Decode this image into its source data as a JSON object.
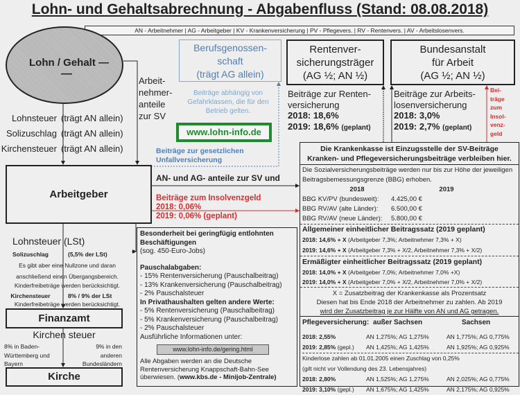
{
  "title": "Lohn- und Gehaltsabrechnung  -  Abgabenfluss (Stand: 08.08.2018)",
  "legend": "AN - Arbeitnehmer | AG - Arbeitgeber | KV - Krankenversicherung | PV - Pflegevers. | RV - Rentenvers. | AV - Arbeitslosenvers.",
  "ellipse": {
    "label": "Lohn / Gehalt —",
    "dash": "—"
  },
  "an_anteile": [
    "Arbeit-",
    "nehmer-",
    "anteile",
    "zur SV"
  ],
  "taxes": [
    {
      "name": "Lohnsteuer",
      "note": "(trägt AN allein)"
    },
    {
      "name": "Solizuschlag",
      "note": "(trägt AN allein)"
    },
    {
      "name": "Kirchensteuer",
      "note": "(trägt AN allein)"
    }
  ],
  "bg": {
    "title": [
      "Berufsgenossen-",
      "schaft",
      "(trägt AG allein)"
    ],
    "note": "Beiträge abhängig von Gefahrklassen, die für den Betrieb gelten.",
    "website": "www.lohn-info.de",
    "label": "Beiträge zur gesetzlichen Unfallversicherung"
  },
  "rv": {
    "title": [
      "Rentenver-",
      "sicherungsträger",
      "(AG ½; AN ½)"
    ],
    "text": [
      "Beiträge zur Renten-",
      "versicherung"
    ],
    "y2018": "2018: 18,6%",
    "y2019": "2019: 18,6%",
    "planned": "(geplant)"
  },
  "ba": {
    "title": [
      "Bundesanstalt",
      "für Arbeit",
      "(AG ½; AN ½)"
    ],
    "text": [
      "Beiträge zur Arbeits-",
      "losenversicherung"
    ],
    "y2018": "2018: 3,0%",
    "y2019": "2019: 2,7%",
    "planned": "(geplant)",
    "insolvenz": [
      "Bei-",
      "träge",
      "zum",
      "Insol-",
      "venz-",
      "geld"
    ]
  },
  "arbeitgeber": "Arbeitgeber",
  "flow": {
    "sv": "AN- und AG- anteile  zur SV und",
    "insolvenz": [
      "Beiträge zum Insolvenzgeld",
      "2018: 0,06%",
      "2019: 0,06% (geplant)"
    ]
  },
  "kk": {
    "head1": "Die Krankenkasse ist Einzugsstelle der SV-Beiträge",
    "head2": "Kranken- und Pflegeversicherungsbeiträge verbleiben hier.",
    "bbg_intro": "Die Sozialversicherungsbeiträge werden nur bis zur Höhe der jeweiligen Beitragsbemessungsgrenze (BBG) erhoben.",
    "years": [
      "2018",
      "2019"
    ],
    "bbg": [
      {
        "label": "BBG KV/PV (bundesweit):",
        "v2018": "4.425,00 €"
      },
      {
        "label": "BBG RV/AV (alte Länder):",
        "v2018": "6.500,00 €"
      },
      {
        "label": "BBG RV/AV (neue Länder):",
        "v2018": "5.800,00 €"
      }
    ],
    "allg_title": "Allgemeiner einheitlicher Beitragssatz (2019 geplant)",
    "allg": [
      {
        "y": "2018: 14,6% + X",
        "d": "(Arbeitgeber 7,3%; Arbeitnehmer 7,3% + X)"
      },
      {
        "y": "2019: 14,6% + X",
        "d": "(Arbeitgeber 7,3% + X/2, Arbeitnehmer 7,3% + X/2)"
      }
    ],
    "erm_title": "Ermäßigter einheitlicher Beitragssatz (2019 geplant)",
    "erm": [
      {
        "y": "2018: 14,0% + X",
        "d": "(Arbeitgeber 7,0%; Arbeitnehmer 7,0% +X)"
      },
      {
        "y": "2019: 14,0% + X",
        "d": "(Arbeitgeber 7,0% + X/2, Arbeitnehmer 7,0% + X/2)"
      }
    ],
    "zusatz": [
      "X = Zusatzbeitrag der Krankenkasse als Prozentsatz",
      "Diesen hat bis Ende 2018 der Arbeitnehmer zu zahlen. Ab 2019",
      "wird der Zusatzbeitrag je zur Hälfte von AN und AG getragen."
    ],
    "pv_head": [
      "Pflegeversicherung:",
      "außer Sachsen",
      "Sachsen"
    ],
    "pv": [
      {
        "y": "2018: 2,55%",
        "s": "",
        "a": "AN 1,275%; AG 1,275%",
        "b": "AN 1,775%; AG 0,775%"
      },
      {
        "y": "2019: 2,85%",
        "s": "(gepl.)",
        "a": "AN 1,425%; AG 1,425%",
        "b": "AN 1,925%; AG 0,925%"
      }
    ],
    "kinderlos": [
      "Kinderlose zahlen ab 01.01.2005 einen Zuschlag von 0,25%",
      "(gilt nicht vor Vollendung des 23. Lebensjahres)"
    ],
    "pv2": [
      {
        "y": "2018: 2,80%",
        "s": "",
        "a": "AN 1,525%; AG 1,275%",
        "b": "AN 2,025%; AG 0,775%"
      },
      {
        "y": "2019: 3,10%",
        "s": "(gepl.)",
        "a": "AN 1,675%; AG 1,425%",
        "b": "AN 2,175%; AG 0,925%"
      }
    ]
  },
  "minijob": {
    "title": "Besonderheit bei geringfügig entlohnten Beschäftigungen",
    "sub": "(sog. 450-Euro-Jobs)",
    "pausch_title": "Pauschalabgaben:",
    "pausch": [
      "- 15% Rentenversicherung (Pauschalbeitrag)",
      "- 13% Krankenversicherung (Pauschalbeitrag)",
      "- 2% Pauschalsteuer"
    ],
    "priv_title": "In Privathaushalten gelten andere Werte:",
    "priv": [
      "- 5% Rentenversicherung (Pauschalbeitrag)",
      "- 5% Krankenversicherung (Pauschalbeitrag)",
      "- 2% Pauschalsteuer"
    ],
    "info": "Ausführliche Informationen  unter:",
    "link": "www.lohn-info.de/gering.html",
    "footer": "Alle Abgaben werden an die Deutsche Rentenversicherung Knappschaft-Bahn-See überwiesen. (",
    "footer_bold": "www.kbs.de  -  Minijob-Zentrale)"
  },
  "lst": {
    "title": "Lohnsteuer (LSt)",
    "soli": "Solizuschlag",
    "soli_rate": "(5,5% der LSt)",
    "lines": [
      "Es gibt aber eine  Nullzone und daran",
      "anschließend einen  Übergangsbereich.",
      "Kinderfreibeträge  werden berücksichtigt."
    ],
    "kist": "Kirchensteuer",
    "kist_rate": "8% / 9% der LSt",
    "kist_note": "Kinderfreibeträge  werden berücksichtigt."
  },
  "finanzamt": "Finanzamt",
  "kirchensteuer": "Kirchen steuer",
  "kist_left": "8% in Baden-Württemberg und Bayern",
  "kist_right": "9% in den anderen Bundesländern",
  "kirche": "Kirche",
  "colors": {
    "blue": "#4e7fb5",
    "red": "#d32f2f",
    "green": "#1e8c2e"
  }
}
